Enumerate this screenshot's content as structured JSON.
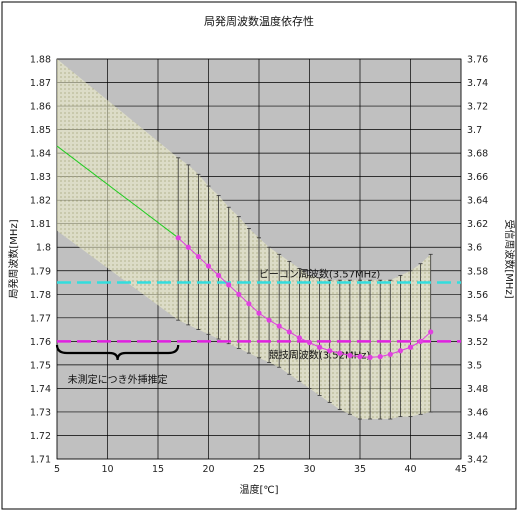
{
  "chart_data": {
    "type": "line",
    "title": "局発周波数温度依存性",
    "xlabel": "温度[℃]",
    "ylabel_left": "局発周波数[MHz]",
    "ylabel_right": "受信周波数[MHz]",
    "xlim": [
      5,
      45
    ],
    "ylim_left": [
      1.71,
      1.88
    ],
    "ylim_right": [
      3.42,
      3.76
    ],
    "x_ticks": [
      "5",
      "10",
      "15",
      "20",
      "25",
      "30",
      "35",
      "40",
      "45"
    ],
    "y_left_ticks": [
      "1.71",
      "1.72",
      "1.73",
      "1.74",
      "1.75",
      "1.76",
      "1.77",
      "1.78",
      "1.79",
      "1.8",
      "1.81",
      "1.82",
      "1.83",
      "1.84",
      "1.85",
      "1.86",
      "1.87",
      "1.88"
    ],
    "y_right_ticks": [
      "3.42",
      "3.44",
      "3.46",
      "3.48",
      "3.5",
      "3.52",
      "3.54",
      "3.56",
      "3.58",
      "3.6",
      "3.62",
      "3.64",
      "3.66",
      "3.68",
      "3.7",
      "3.72",
      "3.74",
      "3.76"
    ],
    "grid": true,
    "colors": {
      "plot_bg": "#c0c0c0",
      "measured": "#e040e0",
      "extrapolated": "#22cc22",
      "beacon": "#33dddd",
      "competitor": "#e020e0",
      "band": "#f2f2cc"
    },
    "series": [
      {
        "x": [
          17,
          18,
          19,
          20,
          21,
          22,
          23,
          24,
          25,
          26,
          27,
          28,
          29,
          30,
          31,
          32,
          33,
          34,
          35,
          36,
          37,
          38,
          39,
          40,
          41,
          42
        ],
        "y": [
          1.804,
          1.8,
          1.796,
          1.792,
          1.788,
          1.784,
          1.78,
          1.776,
          1.772,
          1.769,
          1.7665,
          1.764,
          1.7615,
          1.7595,
          1.7575,
          1.756,
          1.755,
          1.754,
          1.7535,
          1.7532,
          1.7535,
          1.7545,
          1.756,
          1.7575,
          1.76,
          1.764
        ],
        "y_low": [
          1.769,
          1.767,
          1.765,
          1.763,
          1.761,
          1.759,
          1.757,
          1.755,
          1.753,
          1.751,
          1.749,
          1.746,
          1.743,
          1.74,
          1.737,
          1.734,
          1.731,
          1.729,
          1.727,
          1.727,
          1.727,
          1.727,
          1.728,
          1.728,
          1.729,
          1.73
        ],
        "y_high": [
          1.838,
          1.835,
          1.831,
          1.826,
          1.822,
          1.817,
          1.813,
          1.808,
          1.804,
          1.8,
          1.797,
          1.794,
          1.791,
          1.788,
          1.787,
          1.786,
          1.786,
          1.786,
          1.786,
          1.786,
          1.786,
          1.786,
          1.788,
          1.79,
          1.793,
          1.797
        ]
      },
      {
        "x": [
          5,
          17
        ],
        "y": [
          1.843,
          1.804
        ],
        "y_low": [
          1.807,
          1.769
        ],
        "y_high": [
          1.88,
          1.838
        ]
      }
    ],
    "reference_lines": [
      {
        "name": "ビーコン周波数(3.57MHz)",
        "y": 1.785
      },
      {
        "name": "競技周波数(3.52MHz)",
        "y": 1.76
      }
    ],
    "annotations": [
      {
        "text": "未測定につき外挿推定",
        "x_range": [
          5,
          17
        ]
      }
    ]
  }
}
